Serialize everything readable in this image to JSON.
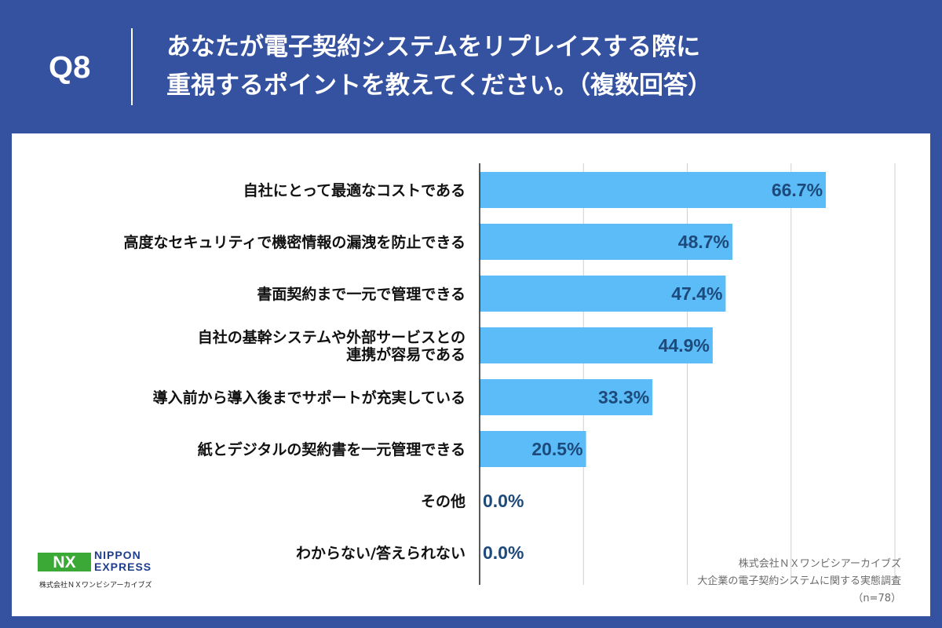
{
  "header": {
    "question_number": "Q8",
    "title_line1": "あなたが電子契約システムをリプレイスする際に",
    "title_line2": "重視するポイントを教えてください。（複数回答）"
  },
  "chart_data": {
    "type": "bar",
    "orientation": "horizontal",
    "title": "あなたが電子契約システムをリプレイスする際に重視するポイントを教えてください。（複数回答）",
    "xlabel": "",
    "ylabel": "",
    "xlim": [
      0,
      80
    ],
    "grid": true,
    "categories": [
      [
        "自社にとって最適なコストである"
      ],
      [
        "高度なセキュリティで機密情報の漏洩を防止できる"
      ],
      [
        "書面契約まで一元で管理できる"
      ],
      [
        "自社の基幹システムや外部サービスとの",
        "連携が容易である"
      ],
      [
        "導入前から導入後までサポートが充実している"
      ],
      [
        "紙とデジタルの契約書を一元管理できる"
      ],
      [
        "その他"
      ],
      [
        "わからない/答えられない"
      ]
    ],
    "values": [
      66.7,
      48.7,
      47.4,
      44.9,
      33.3,
      20.5,
      0.0,
      0.0
    ],
    "value_labels": [
      "66.7%",
      "48.7%",
      "47.4%",
      "44.9%",
      "33.3%",
      "20.5%",
      "0.0%",
      "0.0%"
    ],
    "bar_color": "#5bbcf8"
  },
  "logo": {
    "mark_text": "NX",
    "brand_line1": "NIPPON",
    "brand_line2": "EXPRESS",
    "company": "株式会社ＮＸワンビシアーカイブズ"
  },
  "source": {
    "line1": "株式会社ＮＸワンビシアーカイブズ",
    "line2": "大企業の電子契約システムに関する実態調査",
    "line3": "（n=78）"
  },
  "colors": {
    "background": "#3452a0",
    "panel": "#ffffff",
    "value_text": "#1d4a7a",
    "logo_green": "#3aa935",
    "logo_blue": "#1f3d8f"
  }
}
